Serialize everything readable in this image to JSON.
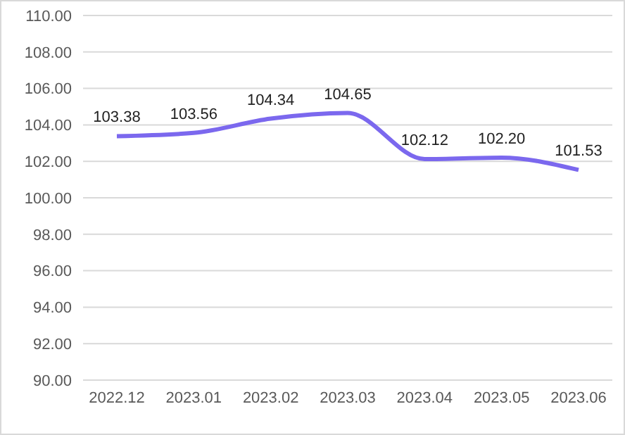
{
  "chart_data": {
    "type": "line",
    "categories": [
      "2022.12",
      "2023.01",
      "2023.02",
      "2023.03",
      "2023.04",
      "2023.05",
      "2023.06"
    ],
    "series": [
      {
        "color": "#7b68ee",
        "values": [
          103.38,
          103.56,
          104.34,
          104.65,
          102.12,
          102.2,
          101.53
        ],
        "value_labels": [
          "103.38",
          "103.56",
          "104.34",
          "104.65",
          "102.12",
          "102.20",
          "101.53"
        ]
      }
    ],
    "ylim": [
      90,
      110
    ],
    "yticks": [
      {
        "value": 90,
        "label": "90.00"
      },
      {
        "value": 92,
        "label": "92.00"
      },
      {
        "value": 94,
        "label": "94.00"
      },
      {
        "value": 96,
        "label": "96.00"
      },
      {
        "value": 98,
        "label": "98.00"
      },
      {
        "value": 100,
        "label": "100.00"
      },
      {
        "value": 102,
        "label": "102.00"
      },
      {
        "value": 104,
        "label": "104.00"
      },
      {
        "value": 106,
        "label": "106.00"
      },
      {
        "value": 108,
        "label": "108.00"
      },
      {
        "value": 110,
        "label": "110.00"
      }
    ],
    "grid": "y",
    "marker": "none",
    "line_style": "solid"
  }
}
